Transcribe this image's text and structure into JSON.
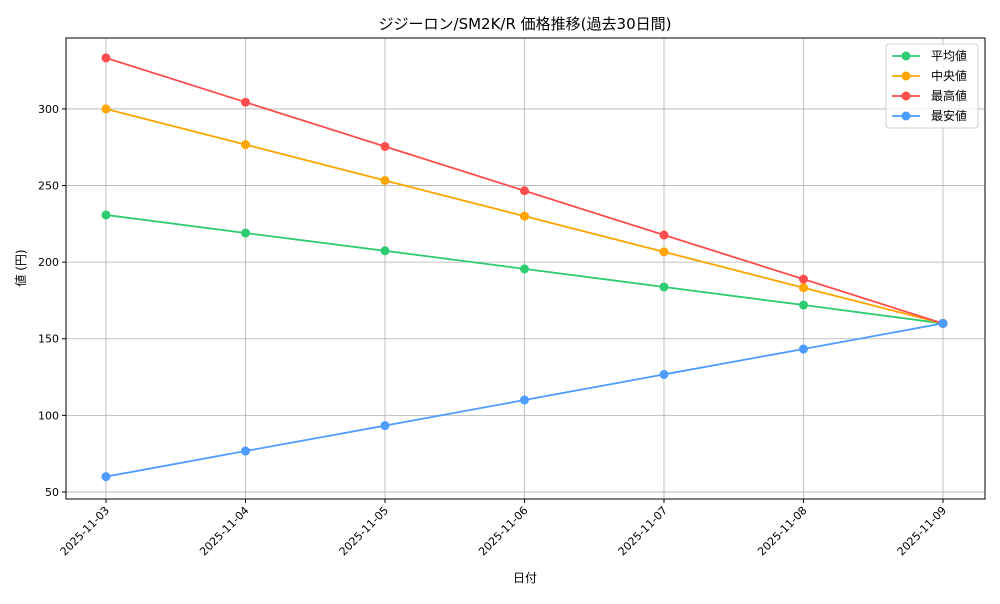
{
  "chart_data": {
    "type": "line",
    "title": "ジジーロン/SM2K/R 価格推移(過去30日間)",
    "xlabel": "日付",
    "ylabel": "値 (円)",
    "categories": [
      "2025-11-03",
      "2025-11-04",
      "2025-11-05",
      "2025-11-06",
      "2025-11-07",
      "2025-11-08",
      "2025-11-09"
    ],
    "yticks": [
      50,
      100,
      150,
      200,
      250,
      300
    ],
    "ylim": [
      45.4,
      346.3
    ],
    "grid": true,
    "legend_placement": "top-right",
    "series": [
      {
        "name": "平均値",
        "color": "#2ecc71",
        "values": [
          230.8,
          219.0,
          207.4,
          195.6,
          183.8,
          172.0,
          160.0
        ]
      },
      {
        "name": "中央値",
        "color": "#ffa500",
        "values": [
          300.0,
          276.7,
          253.3,
          230.0,
          206.7,
          183.3,
          160.0
        ]
      },
      {
        "name": "最高値",
        "color": "#ff4d4d",
        "values": [
          333.3,
          304.4,
          275.5,
          246.6,
          217.7,
          188.9,
          160.0
        ]
      },
      {
        "name": "最安値",
        "color": "#4d9cff",
        "values": [
          60.0,
          76.7,
          93.3,
          110.0,
          126.7,
          143.3,
          160.0
        ]
      }
    ]
  }
}
